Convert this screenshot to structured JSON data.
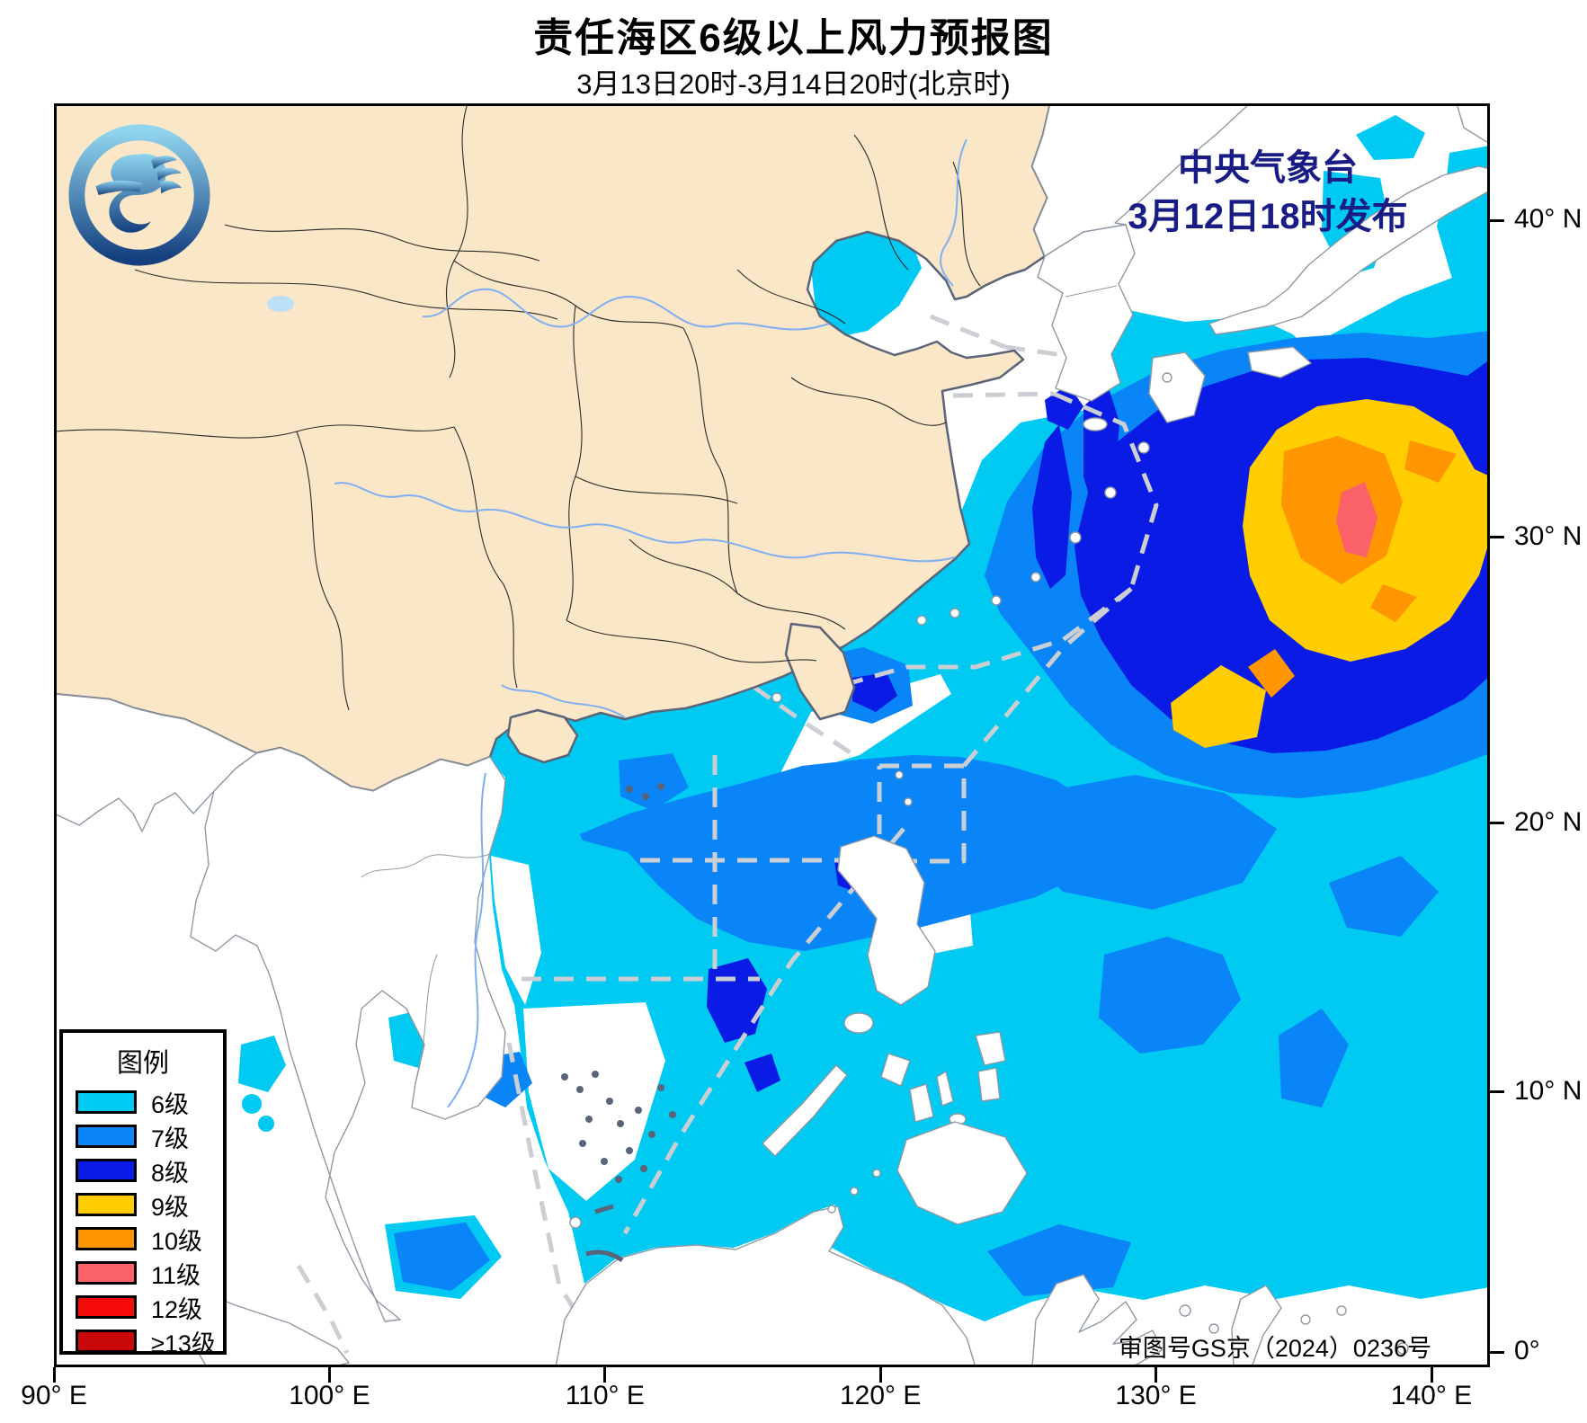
{
  "title": {
    "main": "责任海区6级以上风力预报图",
    "sub": "3月13日20时-3月14日20时(北京时)"
  },
  "publisher": {
    "line1": "中央气象台",
    "line2": "3月12日18时发布"
  },
  "approval": "审图号GS京（2024）0236号",
  "legend": {
    "title": "图例",
    "items": [
      {
        "label": "6级",
        "color": "#00C9F2"
      },
      {
        "label": "7级",
        "color": "#0A85F8"
      },
      {
        "label": "8级",
        "color": "#0B1BE6"
      },
      {
        "label": "9级",
        "color": "#FFCD00"
      },
      {
        "label": "10级",
        "color": "#FF9500"
      },
      {
        "label": "11级",
        "color": "#FA6168"
      },
      {
        "label": "12级",
        "color": "#F50A0A"
      },
      {
        "label": "≥13级",
        "color": "#C90909"
      }
    ]
  },
  "axes": {
    "x": [
      {
        "label": "90° E",
        "lon": 90
      },
      {
        "label": "100° E",
        "lon": 100
      },
      {
        "label": "110° E",
        "lon": 110
      },
      {
        "label": "120° E",
        "lon": 120
      },
      {
        "label": "130° E",
        "lon": 130
      },
      {
        "label": "140° E",
        "lon": 140
      }
    ],
    "y": [
      {
        "label": "40° N",
        "lat": 40
      },
      {
        "label": "30° N",
        "lat": 30
      },
      {
        "label": "20° N",
        "lat": 20
      },
      {
        "label": "10° N",
        "lat": 10
      },
      {
        "label": "0°",
        "lat": 0
      }
    ]
  },
  "colors": {
    "sea": "#FFFFFF",
    "land_china": "#FAE7C8",
    "land_other": "#FFFFFF",
    "coast_china": "#5A6478",
    "coast_other": "#9099A3",
    "province": "#2A2A2A",
    "river": "#7FAFF2",
    "lake": "#BEE0F6",
    "zone_dash": "#CBCFD4",
    "frame": "#000000",
    "publisher_text": "#1A1C86",
    "title_text": "#000000",
    "logo_light": "#8FD4EF",
    "logo_dark": "#15407F"
  }
}
